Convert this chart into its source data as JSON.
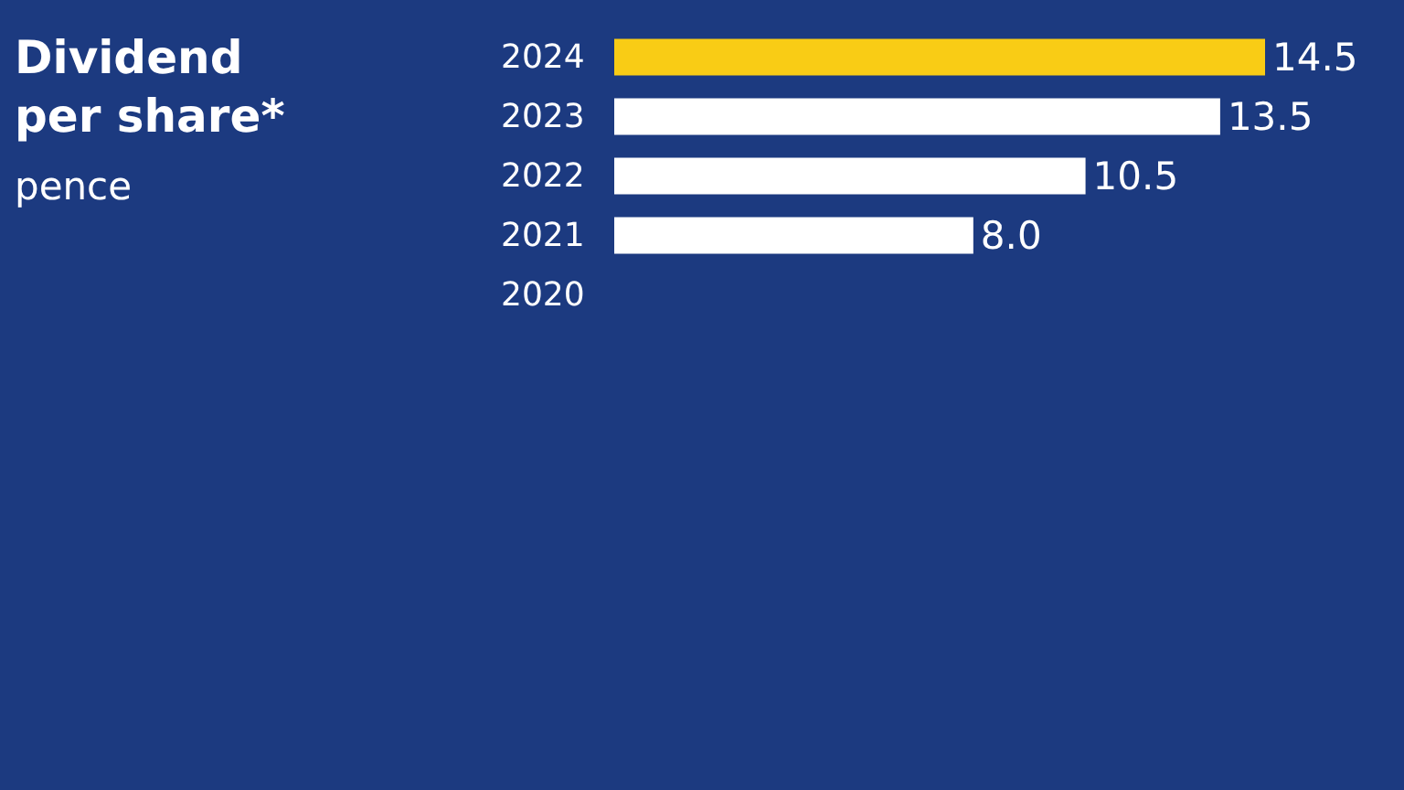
{
  "chart_data": {
    "type": "bar",
    "title": "Dividend per share*",
    "subtitle": "pence",
    "orientation": "horizontal",
    "categories": [
      "2024",
      "2023",
      "2022",
      "2021",
      "2020"
    ],
    "values": [
      14.5,
      13.5,
      10.5,
      8.0,
      null
    ],
    "colors": [
      "#f9cc15",
      "#ffffff",
      "#ffffff",
      "#ffffff",
      "#ffffff"
    ],
    "value_labels": [
      "14.5",
      "13.5",
      "10.5",
      "8.0",
      null
    ],
    "tick_labels": "y",
    "grid": false
  }
}
